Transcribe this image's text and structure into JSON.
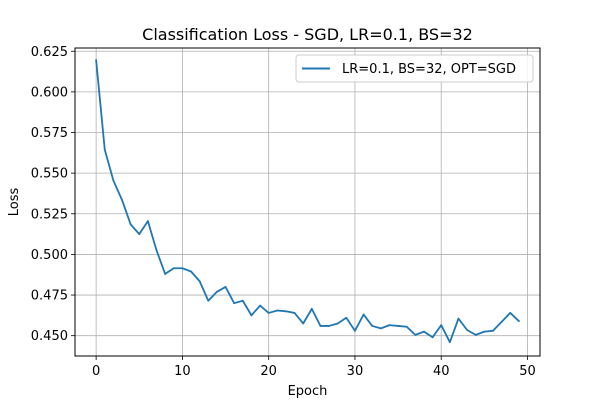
{
  "chart_data": {
    "type": "line",
    "title": "Classification Loss - SGD, LR=0.1, BS=32",
    "xlabel": "Epoch",
    "ylabel": "Loss",
    "xlim": [
      -2.45,
      51.45
    ],
    "ylim": [
      0.4375,
      0.627
    ],
    "xticks": [
      0,
      10,
      20,
      30,
      40,
      50
    ],
    "xtick_labels": [
      "0",
      "10",
      "20",
      "30",
      "40",
      "50"
    ],
    "yticks": [
      0.45,
      0.475,
      0.5,
      0.525,
      0.55,
      0.575,
      0.6,
      0.625
    ],
    "ytick_labels": [
      "0.450",
      "0.475",
      "0.500",
      "0.525",
      "0.550",
      "0.575",
      "0.600",
      "0.625"
    ],
    "grid": true,
    "legend_position": "top-right",
    "series": [
      {
        "name": "LR=0.1, BS=32, OPT=SGD",
        "color": "#1f77b4",
        "x": [
          0,
          1,
          2,
          3,
          4,
          5,
          6,
          7,
          8,
          9,
          10,
          11,
          12,
          13,
          14,
          15,
          16,
          17,
          18,
          19,
          20,
          21,
          22,
          23,
          24,
          25,
          26,
          27,
          28,
          29,
          30,
          31,
          32,
          33,
          34,
          35,
          36,
          37,
          38,
          39,
          40,
          41,
          42,
          43,
          44,
          45,
          46,
          47,
          48,
          49
        ],
        "y": [
          0.6195,
          0.5645,
          0.5455,
          0.5335,
          0.5185,
          0.5125,
          0.5205,
          0.5025,
          0.488,
          0.4915,
          0.4915,
          0.4895,
          0.4835,
          0.4715,
          0.477,
          0.48,
          0.47,
          0.4715,
          0.4625,
          0.4685,
          0.464,
          0.4655,
          0.465,
          0.464,
          0.4575,
          0.4665,
          0.456,
          0.456,
          0.4575,
          0.461,
          0.453,
          0.463,
          0.456,
          0.4545,
          0.4565,
          0.456,
          0.4555,
          0.4505,
          0.4525,
          0.449,
          0.4565,
          0.446,
          0.4605,
          0.4535,
          0.4505,
          0.4525,
          0.453,
          0.4585,
          0.464,
          0.459
        ]
      }
    ]
  }
}
